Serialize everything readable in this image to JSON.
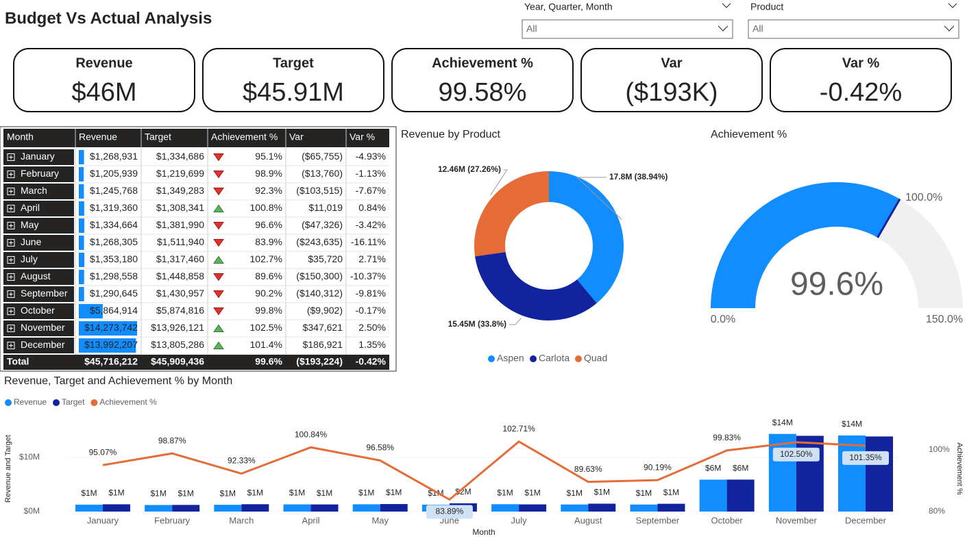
{
  "header": {
    "title": "Budget Vs Actual Analysis"
  },
  "slicers": [
    {
      "label": "Year, Quarter, Month",
      "value": "All"
    },
    {
      "label": "Product",
      "value": "All"
    }
  ],
  "cards": [
    {
      "label": "Revenue",
      "value": "$46M"
    },
    {
      "label": "Target",
      "value": "$45.91M"
    },
    {
      "label": "Achievement %",
      "value": "99.58%"
    },
    {
      "label": "Var",
      "value": "($193K)"
    },
    {
      "label": "Var %",
      "value": "-0.42%"
    }
  ],
  "table": {
    "columns": [
      "Month",
      "Revenue",
      "Target",
      "Achievement %",
      "Var",
      "Var %"
    ],
    "rows": [
      [
        "January",
        {
          "value": 1268931,
          "label": "$1,268,931"
        },
        "$1,334,686",
        {
          "value": 95.1,
          "label": "95.1%"
        },
        "($65,755)",
        "-4.93%"
      ],
      [
        "February",
        {
          "value": 1205939,
          "label": "$1,205,939"
        },
        "$1,219,699",
        {
          "value": 98.9,
          "label": "98.9%"
        },
        "($13,760)",
        "-1.13%"
      ],
      [
        "March",
        {
          "value": 1245768,
          "label": "$1,245,768"
        },
        "$1,349,283",
        {
          "value": 92.3,
          "label": "92.3%"
        },
        "($103,515)",
        "-7.67%"
      ],
      [
        "April",
        {
          "value": 1319360,
          "label": "$1,319,360"
        },
        "$1,308,341",
        {
          "value": 100.8,
          "label": "100.8%"
        },
        "$11,019",
        "0.84%"
      ],
      [
        "May",
        {
          "value": 1334664,
          "label": "$1,334,664"
        },
        "$1,381,990",
        {
          "value": 96.6,
          "label": "96.6%"
        },
        "($47,326)",
        "-3.42%"
      ],
      [
        "June",
        {
          "value": 1268305,
          "label": "$1,268,305"
        },
        "$1,511,940",
        {
          "value": 83.9,
          "label": "83.9%"
        },
        "($243,635)",
        "-16.11%"
      ],
      [
        "July",
        {
          "value": 1353180,
          "label": "$1,353,180"
        },
        "$1,317,460",
        {
          "value": 102.7,
          "label": "102.7%"
        },
        "$35,720",
        "2.71%"
      ],
      [
        "August",
        {
          "value": 1298558,
          "label": "$1,298,558"
        },
        "$1,448,858",
        {
          "value": 89.6,
          "label": "89.6%"
        },
        "($150,300)",
        "-10.37%"
      ],
      [
        "September",
        {
          "value": 1290645,
          "label": "$1,290,645"
        },
        "$1,430,957",
        {
          "value": 90.2,
          "label": "90.2%"
        },
        "($140,312)",
        "-9.81%"
      ],
      [
        "October",
        {
          "value": 5864914,
          "label": "$5,864,914"
        },
        "$5,874,816",
        {
          "value": 99.8,
          "label": "99.8%"
        },
        "($9,902)",
        "-0.17%"
      ],
      [
        "November",
        {
          "value": 14273742,
          "label": "$14,273,742"
        },
        "$13,926,121",
        {
          "value": 102.5,
          "label": "102.5%"
        },
        "$347,621",
        "2.50%"
      ],
      [
        "December",
        {
          "value": 13992207,
          "label": "$13,992,207"
        },
        "$13,805,286",
        {
          "value": 101.4,
          "label": "101.4%"
        },
        "$186,921",
        "1.35%"
      ]
    ],
    "total": [
      "Total",
      "$45,716,212",
      "$45,909,436",
      "99.6%",
      "($193,224)",
      "-0.42%"
    ]
  },
  "chart_data": [
    {
      "type": "donut",
      "title": "Revenue by Product",
      "categories": [
        "Aspen",
        "Carlota",
        "Quad"
      ],
      "values": [
        17.8,
        15.45,
        12.46
      ],
      "value_labels": [
        "17.8M (38.94%)",
        "15.45M (33.8%)",
        "12.46M (27.26%)"
      ],
      "colors": [
        "#118dff",
        "#12239e",
        "#e66c37"
      ]
    },
    {
      "type": "gauge",
      "title": "Achievement %",
      "value": 99.6,
      "value_label": "99.6%",
      "min": {
        "value": 0,
        "label": "0.0%"
      },
      "max": {
        "value": 150,
        "label": "150.0%"
      },
      "target": {
        "value": 100,
        "label": "100.0%"
      },
      "color": "#118dff",
      "track_color": "#f0f0f0",
      "target_color": "#12239e"
    },
    {
      "type": "combo",
      "title": "Revenue, Target and Achievement % by Month",
      "xlabel": "Month",
      "ylabel": "Revenue and Target",
      "y2label": "Achievement %",
      "categories": [
        "January",
        "February",
        "March",
        "April",
        "May",
        "June",
        "July",
        "August",
        "September",
        "October",
        "November",
        "December"
      ],
      "series": [
        {
          "name": "Revenue",
          "type": "bar",
          "color": "#118dff",
          "values": [
            1268931,
            1205939,
            1245768,
            1319360,
            1334664,
            1268305,
            1353180,
            1298558,
            1290645,
            5864914,
            14273742,
            13992207
          ],
          "value_labels": [
            "$1M",
            "$1M",
            "$1M",
            "$1M",
            "$1M",
            "$1M",
            "$1M",
            "$1M",
            "$1M",
            "$6M",
            "$14M",
            "$14M"
          ]
        },
        {
          "name": "Target",
          "type": "bar",
          "color": "#12239e",
          "values": [
            1334686,
            1219699,
            1349283,
            1308341,
            1381990,
            1511940,
            1317460,
            1448858,
            1430957,
            5874816,
            13926121,
            13805286
          ],
          "value_labels": [
            "$1M",
            "$1M",
            "$1M",
            "$1M",
            "$1M",
            "$2M",
            "$1M",
            "$1M",
            "$1M",
            "$6M",
            null,
            null
          ]
        },
        {
          "name": "Achievement %",
          "type": "line",
          "axis": "y2",
          "color": "#e66c37",
          "values": [
            95.07,
            98.87,
            92.33,
            100.84,
            96.58,
            83.89,
            102.71,
            89.63,
            90.19,
            99.83,
            102.5,
            101.35
          ],
          "value_labels": [
            "95.07%",
            "98.87%",
            "92.33%",
            "100.84%",
            "96.58%",
            "83.89%",
            "102.71%",
            "89.63%",
            "90.19%",
            "99.83%",
            "102.50%",
            "101.35%"
          ]
        }
      ],
      "ylim": [
        0,
        17000000
      ],
      "yticks": [
        {
          "value": 0,
          "label": "$0M"
        },
        {
          "value": 10000000,
          "label": "$10M"
        }
      ],
      "y2lim": [
        80,
        110
      ],
      "y2ticks": [
        {
          "value": 80,
          "label": "80%"
        },
        {
          "value": 100,
          "label": "100%"
        }
      ],
      "grid": true
    }
  ]
}
